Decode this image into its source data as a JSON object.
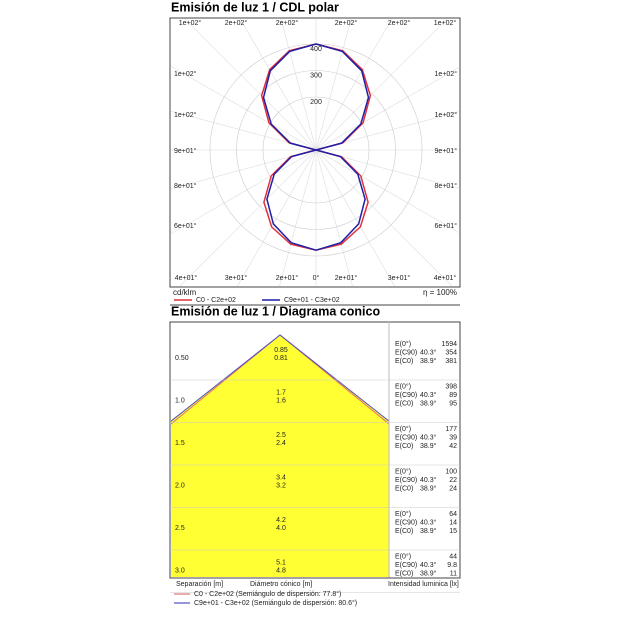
{
  "chart_data": {
    "type": "polar",
    "title": "Emisión de luz 1 / CDL polar",
    "angles": [
      0,
      15,
      30,
      45,
      60,
      75,
      90,
      105,
      120,
      135,
      150,
      165,
      180
    ],
    "series": [
      {
        "name": "C0 - C2e+02",
        "color": "#e0303a",
        "values": [
          378,
          368,
          335,
          278,
          195,
          100,
          0,
          105,
          205,
          290,
          350,
          388,
          400
        ]
      },
      {
        "name": "C9e+01 - C3e+02",
        "color": "#1f1fa8",
        "values": [
          378,
          362,
          322,
          262,
          182,
          95,
          0,
          100,
          195,
          280,
          345,
          385,
          400
        ]
      }
    ],
    "rlim": [
      0,
      500
    ],
    "rticks": [
      200,
      300,
      400
    ],
    "angle_labels": {
      "top": [
        "1e+02°",
        "2e+02°",
        "2e+02°",
        "2e+02°",
        "2e+02°",
        "1e+02°"
      ],
      "left": [
        "1e+02°",
        "1e+02°",
        "9e+01°",
        "8e+01°",
        "6e+01°"
      ],
      "right": [
        "1e+02°",
        "1e+02°",
        "9e+01°",
        "8e+01°",
        "6e+01°"
      ],
      "bottom": [
        "4e+01°",
        "3e+01°",
        "2e+01°",
        "0°",
        "2e+01°",
        "3e+01°",
        "4e+01°"
      ]
    },
    "unit": "cd/klm",
    "efficiency": "η = 100%"
  },
  "cone": {
    "title": "Emisión de luz 1 / Diagrama conico",
    "rows": [
      {
        "height": "0.50",
        "d1": "0.85",
        "d2": "0.81",
        "e0": "1594",
        "e90": "354",
        "ec0": "381"
      },
      {
        "height": "1.0",
        "d1": "1.7",
        "d2": "1.6",
        "e0": "398",
        "e90": "89",
        "ec0": "95"
      },
      {
        "height": "1.5",
        "d1": "2.5",
        "d2": "2.4",
        "e0": "177",
        "e90": "39",
        "ec0": "42"
      },
      {
        "height": "2.0",
        "d1": "3.4",
        "d2": "3.2",
        "e0": "100",
        "e90": "22",
        "ec0": "24"
      },
      {
        "height": "2.5",
        "d1": "4.2",
        "d2": "4.0",
        "e0": "64",
        "e90": "14",
        "ec0": "15"
      },
      {
        "height": "3.0",
        "d1": "5.1",
        "d2": "4.8",
        "e0": "44",
        "e90": "9.8",
        "ec0": "11"
      }
    ],
    "e0_label": "E(0°)",
    "e90_label": "E(C90)",
    "ec0_label": "E(C0)",
    "angle90": "40.3°",
    "angle0": "38.9°",
    "footer": {
      "separation": "Separación [m]",
      "diameter": "Diámetro cónico [m]",
      "intensity": "Intensidad luminica [lx]"
    },
    "legend": [
      {
        "name": "C0 - C2e+02 (Semiángulo de dispersión: 77.8°)",
        "color": "#e07070"
      },
      {
        "name": "C9e+01 - C3e+02 (Semiángulo de dispersión: 80.6°)",
        "color": "#5050c0"
      }
    ]
  }
}
